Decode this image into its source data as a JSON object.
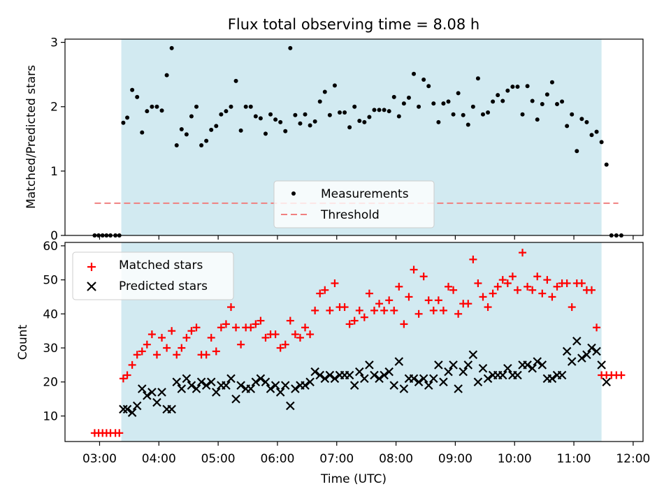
{
  "chart_data": {
    "title": "Flux total observing time = 8.08 h",
    "observing_window": [
      "03:22",
      "11:28"
    ],
    "colors": {
      "shade": "#add8e6",
      "measurement": "#000000",
      "threshold": "#f08080",
      "matched": "#ff0000",
      "predicted": "#000000"
    },
    "x": {
      "label": "Time (UTC)",
      "range": [
        "02:25",
        "12:10"
      ],
      "ticks": [
        "03:00",
        "04:00",
        "05:00",
        "06:00",
        "07:00",
        "08:00",
        "09:00",
        "10:00",
        "11:00",
        "12:00"
      ]
    },
    "top": {
      "type": "scatter",
      "ylabel": "Matched/Predicted stars",
      "ylim": [
        0,
        3.05
      ],
      "yticks": [
        "0",
        "1",
        "2",
        "3"
      ],
      "legend": {
        "position": "lower-center",
        "items": [
          "Measurements",
          "Threshold"
        ]
      },
      "threshold": 0.5,
      "threshold_span": [
        "02:55",
        "11:45"
      ],
      "points": [
        [
          "02:55",
          0
        ],
        [
          "02:59",
          0
        ],
        [
          "03:03",
          0
        ],
        [
          "03:07",
          0
        ],
        [
          "03:11",
          0
        ],
        [
          "03:16",
          0
        ],
        [
          "03:20",
          0
        ],
        [
          "03:24",
          1.75
        ],
        [
          "03:28",
          1.83
        ],
        [
          "03:33",
          2.26
        ],
        [
          "03:38",
          2.15
        ],
        [
          "03:43",
          1.6
        ],
        [
          "03:48",
          1.93
        ],
        [
          "03:53",
          2.0
        ],
        [
          "03:58",
          2.0
        ],
        [
          "04:03",
          1.94
        ],
        [
          "04:08",
          2.49
        ],
        [
          "04:13",
          2.91
        ],
        [
          "04:18",
          1.4
        ],
        [
          "04:23",
          1.65
        ],
        [
          "04:28",
          1.57
        ],
        [
          "04:33",
          1.85
        ],
        [
          "04:38",
          2.0
        ],
        [
          "04:43",
          1.4
        ],
        [
          "04:48",
          1.47
        ],
        [
          "04:53",
          1.64
        ],
        [
          "04:58",
          1.7
        ],
        [
          "05:03",
          1.88
        ],
        [
          "05:08",
          1.93
        ],
        [
          "05:13",
          2.0
        ],
        [
          "05:18",
          2.4
        ],
        [
          "05:23",
          1.63
        ],
        [
          "05:28",
          2.0
        ],
        [
          "05:33",
          2.0
        ],
        [
          "05:38",
          1.85
        ],
        [
          "05:43",
          1.82
        ],
        [
          "05:48",
          1.58
        ],
        [
          "05:53",
          1.88
        ],
        [
          "05:58",
          1.8
        ],
        [
          "06:03",
          1.76
        ],
        [
          "06:08",
          1.62
        ],
        [
          "06:13",
          2.91
        ],
        [
          "06:18",
          1.87
        ],
        [
          "06:23",
          1.74
        ],
        [
          "06:28",
          1.88
        ],
        [
          "06:33",
          1.71
        ],
        [
          "06:38",
          1.77
        ],
        [
          "06:43",
          2.08
        ],
        [
          "06:48",
          2.23
        ],
        [
          "06:53",
          1.87
        ],
        [
          "06:58",
          2.33
        ],
        [
          "07:03",
          1.91
        ],
        [
          "07:08",
          1.91
        ],
        [
          "07:13",
          1.68
        ],
        [
          "07:18",
          2.0
        ],
        [
          "07:23",
          1.78
        ],
        [
          "07:28",
          1.76
        ],
        [
          "07:33",
          1.84
        ],
        [
          "07:38",
          1.95
        ],
        [
          "07:43",
          1.95
        ],
        [
          "07:48",
          1.95
        ],
        [
          "07:53",
          1.93
        ],
        [
          "07:58",
          2.15
        ],
        [
          "08:03",
          1.85
        ],
        [
          "08:08",
          2.05
        ],
        [
          "08:13",
          2.14
        ],
        [
          "08:18",
          2.51
        ],
        [
          "08:23",
          2.0
        ],
        [
          "08:28",
          2.42
        ],
        [
          "08:33",
          2.32
        ],
        [
          "08:38",
          2.05
        ],
        [
          "08:43",
          1.76
        ],
        [
          "08:48",
          2.05
        ],
        [
          "08:53",
          2.08
        ],
        [
          "08:58",
          1.88
        ],
        [
          "09:03",
          2.21
        ],
        [
          "09:08",
          1.87
        ],
        [
          "09:13",
          1.72
        ],
        [
          "09:18",
          2.0
        ],
        [
          "09:23",
          2.44
        ],
        [
          "09:28",
          1.88
        ],
        [
          "09:33",
          1.91
        ],
        [
          "09:38",
          2.08
        ],
        [
          "09:43",
          2.18
        ],
        [
          "09:48",
          2.09
        ],
        [
          "09:53",
          2.25
        ],
        [
          "09:58",
          2.31
        ],
        [
          "10:03",
          2.31
        ],
        [
          "10:08",
          1.88
        ],
        [
          "10:13",
          2.32
        ],
        [
          "10:18",
          2.09
        ],
        [
          "10:23",
          1.8
        ],
        [
          "10:28",
          2.04
        ],
        [
          "10:33",
          2.19
        ],
        [
          "10:38",
          2.38
        ],
        [
          "10:43",
          2.04
        ],
        [
          "10:48",
          2.08
        ],
        [
          "10:53",
          1.7
        ],
        [
          "10:58",
          1.88
        ],
        [
          "11:03",
          1.31
        ],
        [
          "11:08",
          1.81
        ],
        [
          "11:13",
          1.76
        ],
        [
          "11:18",
          1.56
        ],
        [
          "11:23",
          1.61
        ],
        [
          "11:28",
          1.45
        ],
        [
          "11:33",
          1.1
        ],
        [
          "11:38",
          0
        ],
        [
          "11:43",
          0
        ],
        [
          "11:48",
          0
        ]
      ]
    },
    "bottom": {
      "type": "scatter",
      "ylabel": "Count",
      "ylim": [
        2.5,
        61
      ],
      "yticks": [
        "10",
        "20",
        "30",
        "40",
        "50",
        "60"
      ],
      "legend": {
        "position": "top-left",
        "items": [
          "Matched stars",
          "Predicted stars"
        ]
      },
      "matched": [
        [
          "02:55",
          5
        ],
        [
          "02:59",
          5
        ],
        [
          "03:03",
          5
        ],
        [
          "03:07",
          5
        ],
        [
          "03:11",
          5
        ],
        [
          "03:16",
          5
        ],
        [
          "03:20",
          5
        ],
        [
          "03:24",
          21
        ],
        [
          "03:28",
          22
        ],
        [
          "03:33",
          25
        ],
        [
          "03:38",
          28
        ],
        [
          "03:43",
          29
        ],
        [
          "03:48",
          31
        ],
        [
          "03:53",
          34
        ],
        [
          "03:58",
          28
        ],
        [
          "04:03",
          33
        ],
        [
          "04:08",
          30
        ],
        [
          "04:13",
          35
        ],
        [
          "04:18",
          28
        ],
        [
          "04:23",
          30
        ],
        [
          "04:28",
          33
        ],
        [
          "04:33",
          35
        ],
        [
          "04:38",
          36
        ],
        [
          "04:43",
          28
        ],
        [
          "04:48",
          28
        ],
        [
          "04:53",
          33
        ],
        [
          "04:58",
          29
        ],
        [
          "05:03",
          36
        ],
        [
          "05:08",
          37
        ],
        [
          "05:13",
          42
        ],
        [
          "05:18",
          36
        ],
        [
          "05:23",
          31
        ],
        [
          "05:28",
          36
        ],
        [
          "05:33",
          36
        ],
        [
          "05:38",
          37
        ],
        [
          "05:43",
          38
        ],
        [
          "05:48",
          33
        ],
        [
          "05:53",
          34
        ],
        [
          "05:58",
          34
        ],
        [
          "06:03",
          30
        ],
        [
          "06:08",
          31
        ],
        [
          "06:13",
          38
        ],
        [
          "06:18",
          34
        ],
        [
          "06:23",
          33
        ],
        [
          "06:28",
          36
        ],
        [
          "06:33",
          34
        ],
        [
          "06:38",
          41
        ],
        [
          "06:43",
          46
        ],
        [
          "06:48",
          47
        ],
        [
          "06:53",
          41
        ],
        [
          "06:58",
          49
        ],
        [
          "07:03",
          42
        ],
        [
          "07:08",
          42
        ],
        [
          "07:13",
          37
        ],
        [
          "07:18",
          38
        ],
        [
          "07:23",
          41
        ],
        [
          "07:28",
          39
        ],
        [
          "07:33",
          46
        ],
        [
          "07:38",
          41
        ],
        [
          "07:43",
          43
        ],
        [
          "07:48",
          41
        ],
        [
          "07:53",
          44
        ],
        [
          "07:58",
          41
        ],
        [
          "08:03",
          48
        ],
        [
          "08:08",
          37
        ],
        [
          "08:13",
          45
        ],
        [
          "08:18",
          53
        ],
        [
          "08:23",
          40
        ],
        [
          "08:28",
          51
        ],
        [
          "08:33",
          44
        ],
        [
          "08:38",
          41
        ],
        [
          "08:43",
          44
        ],
        [
          "08:48",
          41
        ],
        [
          "08:53",
          48
        ],
        [
          "08:58",
          47
        ],
        [
          "09:03",
          40
        ],
        [
          "09:08",
          43
        ],
        [
          "09:13",
          43
        ],
        [
          "09:18",
          56
        ],
        [
          "09:23",
          49
        ],
        [
          "09:28",
          45
        ],
        [
          "09:33",
          42
        ],
        [
          "09:38",
          46
        ],
        [
          "09:43",
          48
        ],
        [
          "09:48",
          50
        ],
        [
          "09:53",
          49
        ],
        [
          "09:58",
          51
        ],
        [
          "10:03",
          47
        ],
        [
          "10:08",
          58
        ],
        [
          "10:13",
          48
        ],
        [
          "10:18",
          47
        ],
        [
          "10:23",
          51
        ],
        [
          "10:28",
          46
        ],
        [
          "10:33",
          50
        ],
        [
          "10:38",
          45
        ],
        [
          "10:43",
          48
        ],
        [
          "10:48",
          49
        ],
        [
          "10:53",
          49
        ],
        [
          "10:58",
          42
        ],
        [
          "11:03",
          49
        ],
        [
          "11:08",
          49
        ],
        [
          "11:13",
          47
        ],
        [
          "11:18",
          47
        ],
        [
          "11:23",
          36
        ],
        [
          "11:28",
          22
        ],
        [
          "11:33",
          22
        ],
        [
          "11:38",
          22
        ],
        [
          "11:43",
          22
        ],
        [
          "11:48",
          22
        ]
      ],
      "predicted": [
        [
          "03:24",
          12
        ],
        [
          "03:28",
          12
        ],
        [
          "03:33",
          11
        ],
        [
          "03:38",
          13
        ],
        [
          "03:43",
          18
        ],
        [
          "03:48",
          16
        ],
        [
          "03:53",
          17
        ],
        [
          "03:58",
          14
        ],
        [
          "04:03",
          17
        ],
        [
          "04:08",
          12
        ],
        [
          "04:13",
          12
        ],
        [
          "04:18",
          20
        ],
        [
          "04:23",
          18
        ],
        [
          "04:28",
          21
        ],
        [
          "04:33",
          19
        ],
        [
          "04:38",
          18
        ],
        [
          "04:43",
          20
        ],
        [
          "04:48",
          19
        ],
        [
          "04:53",
          20
        ],
        [
          "04:58",
          17
        ],
        [
          "05:03",
          19
        ],
        [
          "05:08",
          19
        ],
        [
          "05:13",
          21
        ],
        [
          "05:18",
          15
        ],
        [
          "05:23",
          19
        ],
        [
          "05:28",
          18
        ],
        [
          "05:33",
          18
        ],
        [
          "05:38",
          20
        ],
        [
          "05:43",
          21
        ],
        [
          "05:48",
          20
        ],
        [
          "05:53",
          18
        ],
        [
          "05:58",
          19
        ],
        [
          "06:03",
          17
        ],
        [
          "06:08",
          19
        ],
        [
          "06:13",
          13
        ],
        [
          "06:18",
          18
        ],
        [
          "06:23",
          19
        ],
        [
          "06:28",
          19
        ],
        [
          "06:33",
          20
        ],
        [
          "06:38",
          23
        ],
        [
          "06:43",
          22
        ],
        [
          "06:48",
          21
        ],
        [
          "06:53",
          22
        ],
        [
          "06:58",
          21
        ],
        [
          "07:03",
          22
        ],
        [
          "07:08",
          22
        ],
        [
          "07:13",
          22
        ],
        [
          "07:18",
          19
        ],
        [
          "07:23",
          23
        ],
        [
          "07:28",
          21
        ],
        [
          "07:33",
          25
        ],
        [
          "07:38",
          22
        ],
        [
          "07:43",
          21
        ],
        [
          "07:48",
          22
        ],
        [
          "07:53",
          23
        ],
        [
          "07:58",
          19
        ],
        [
          "08:03",
          26
        ],
        [
          "08:08",
          18
        ],
        [
          "08:13",
          21
        ],
        [
          "08:18",
          21
        ],
        [
          "08:23",
          20
        ],
        [
          "08:28",
          21
        ],
        [
          "08:33",
          19
        ],
        [
          "08:38",
          21
        ],
        [
          "08:43",
          25
        ],
        [
          "08:48",
          20
        ],
        [
          "08:53",
          23
        ],
        [
          "08:58",
          25
        ],
        [
          "09:03",
          18
        ],
        [
          "09:08",
          23
        ],
        [
          "09:13",
          25
        ],
        [
          "09:18",
          28
        ],
        [
          "09:23",
          20
        ],
        [
          "09:28",
          24
        ],
        [
          "09:33",
          21
        ],
        [
          "09:38",
          22
        ],
        [
          "09:43",
          22
        ],
        [
          "09:48",
          22
        ],
        [
          "09:53",
          24
        ],
        [
          "09:58",
          22
        ],
        [
          "10:03",
          22
        ],
        [
          "10:08",
          25
        ],
        [
          "10:13",
          25
        ],
        [
          "10:18",
          24
        ],
        [
          "10:23",
          26
        ],
        [
          "10:28",
          25
        ],
        [
          "10:33",
          21
        ],
        [
          "10:38",
          21
        ],
        [
          "10:43",
          22
        ],
        [
          "10:48",
          22
        ],
        [
          "10:53",
          29
        ],
        [
          "10:58",
          26
        ],
        [
          "11:03",
          32
        ],
        [
          "11:08",
          27
        ],
        [
          "11:13",
          28
        ],
        [
          "11:18",
          30
        ],
        [
          "11:23",
          29
        ],
        [
          "11:28",
          25
        ],
        [
          "11:33",
          20
        ]
      ]
    }
  }
}
